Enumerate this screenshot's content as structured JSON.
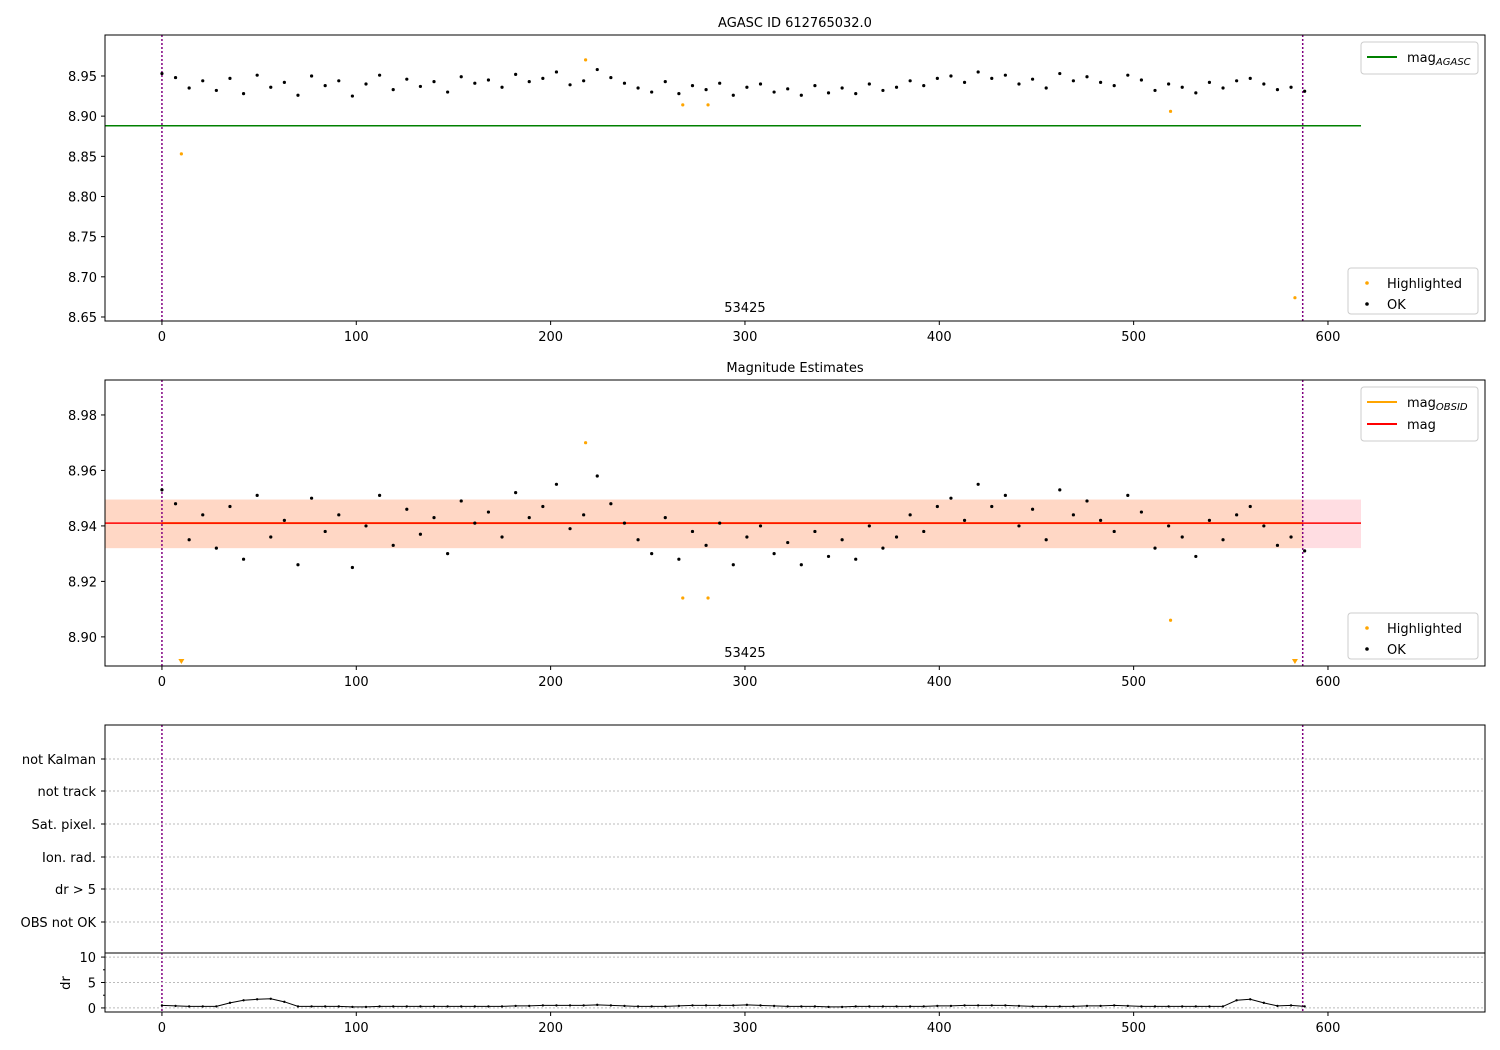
{
  "chart_data": [
    {
      "type": "scatter",
      "title": "AGASC ID 612765032.0",
      "xlim": [
        -29.3,
        680.8
      ],
      "ylim": [
        8.645,
        9.001
      ],
      "xticks": [
        0,
        100,
        200,
        300,
        400,
        500,
        600
      ],
      "yticks": [
        8.65,
        8.7,
        8.75,
        8.8,
        8.85,
        8.9,
        8.95
      ],
      "ytick_labels": [
        "8.65",
        "8.70",
        "8.75",
        "8.80",
        "8.85",
        "8.90",
        "8.95"
      ],
      "mag_agasc": 8.888,
      "mag_agasc_xrange": [
        -29.3,
        617
      ],
      "legend_top": [
        {
          "label": "mag",
          "sub": "AGASC",
          "color": "#008000"
        }
      ],
      "legend_bottom": [
        {
          "label": "Highlighted",
          "color": "#ffa500"
        },
        {
          "label": "OK",
          "color": "#000000"
        }
      ],
      "annotation": {
        "text": "53425",
        "x": 300
      },
      "vlines": [
        0,
        587
      ]
    },
    {
      "type": "scatter",
      "title": "Magnitude Estimates",
      "xlim": [
        -29.3,
        680.8
      ],
      "ylim": [
        8.8895,
        8.9926
      ],
      "xticks": [
        0,
        100,
        200,
        300,
        400,
        500,
        600
      ],
      "yticks": [
        8.9,
        8.92,
        8.94,
        8.96,
        8.98
      ],
      "ytick_labels": [
        "8.90",
        "8.92",
        "8.94",
        "8.96",
        "8.98"
      ],
      "mag": 8.941,
      "mag_band": [
        8.932,
        8.9495
      ],
      "mag_obsid": 8.941,
      "obsid_band": [
        8.932,
        8.9495
      ],
      "legend_top": [
        {
          "label": "mag",
          "sub": "OBSID",
          "color": "#ffa500"
        },
        {
          "label": "mag",
          "sub": "",
          "color": "#ff0000"
        }
      ],
      "legend_bottom": [
        {
          "label": "Highlighted",
          "color": "#ffa500"
        },
        {
          "label": "OK",
          "color": "#000000"
        }
      ],
      "annotation": {
        "text": "53425",
        "x": 300
      },
      "vlines": [
        0,
        587
      ]
    },
    {
      "type": "scatter",
      "title": "",
      "flags": [
        "not Kalman",
        "not track",
        "Sat. pixel.",
        "Ion. rad.",
        "dr > 5",
        "OBS not OK"
      ],
      "dr_ylabel": "dr",
      "dr_ylim": [
        -0.8,
        10.8
      ],
      "dr_yticks": [
        0,
        5,
        10
      ],
      "dr_ytick_labels": [
        "0",
        "5",
        "10"
      ],
      "xticks": [
        0,
        100,
        200,
        300,
        400,
        500,
        600
      ],
      "vlines": [
        0,
        587
      ]
    }
  ],
  "series": {
    "x_start": 0,
    "x_step": 7,
    "mag": [
      8.953,
      8.948,
      8.935,
      8.944,
      8.932,
      8.947,
      8.928,
      8.951,
      8.936,
      8.942,
      8.926,
      8.95,
      8.938,
      8.944,
      8.925,
      8.94,
      8.951,
      8.933,
      8.946,
      8.937,
      8.943,
      8.93,
      8.949,
      8.941,
      8.945,
      8.936,
      8.952,
      8.943,
      8.947,
      8.955,
      8.939,
      8.944,
      8.958,
      8.948,
      8.941,
      8.935,
      8.93,
      8.943,
      8.928,
      8.938,
      8.933,
      8.941,
      8.926,
      8.936,
      8.94,
      8.93,
      8.934,
      8.926,
      8.938,
      8.929,
      8.935,
      8.928,
      8.94,
      8.932,
      8.936,
      8.944,
      8.938,
      8.947,
      8.95,
      8.942,
      8.955,
      8.947,
      8.951,
      8.94,
      8.946,
      8.935,
      8.953,
      8.944,
      8.949,
      8.942,
      8.938,
      8.951,
      8.945,
      8.932,
      8.94,
      8.936,
      8.929,
      8.942,
      8.935,
      8.944,
      8.947,
      8.94,
      8.933,
      8.936,
      8.931
    ],
    "dr": [
      0.5,
      0.4,
      0.3,
      0.3,
      0.3,
      1.0,
      1.5,
      1.7,
      1.8,
      1.2,
      0.3,
      0.3,
      0.3,
      0.3,
      0.2,
      0.2,
      0.3,
      0.3,
      0.3,
      0.3,
      0.3,
      0.3,
      0.3,
      0.3,
      0.3,
      0.3,
      0.4,
      0.4,
      0.5,
      0.5,
      0.5,
      0.5,
      0.6,
      0.5,
      0.4,
      0.3,
      0.3,
      0.3,
      0.4,
      0.5,
      0.5,
      0.5,
      0.5,
      0.6,
      0.5,
      0.4,
      0.3,
      0.3,
      0.3,
      0.2,
      0.2,
      0.3,
      0.3,
      0.3,
      0.3,
      0.3,
      0.3,
      0.4,
      0.4,
      0.5,
      0.5,
      0.5,
      0.5,
      0.4,
      0.3,
      0.3,
      0.3,
      0.3,
      0.4,
      0.4,
      0.5,
      0.4,
      0.3,
      0.3,
      0.3,
      0.3,
      0.3,
      0.3,
      0.3,
      1.5,
      1.7,
      1.0,
      0.4,
      0.5,
      0.3
    ],
    "highlighted": [
      {
        "x": 10,
        "mag": 8.853
      },
      {
        "x": 218,
        "mag": 8.97
      },
      {
        "x": 268,
        "mag": 8.914
      },
      {
        "x": 281,
        "mag": 8.914
      },
      {
        "x": 519,
        "mag": 8.906
      },
      {
        "x": 583,
        "mag": 8.674
      }
    ]
  }
}
